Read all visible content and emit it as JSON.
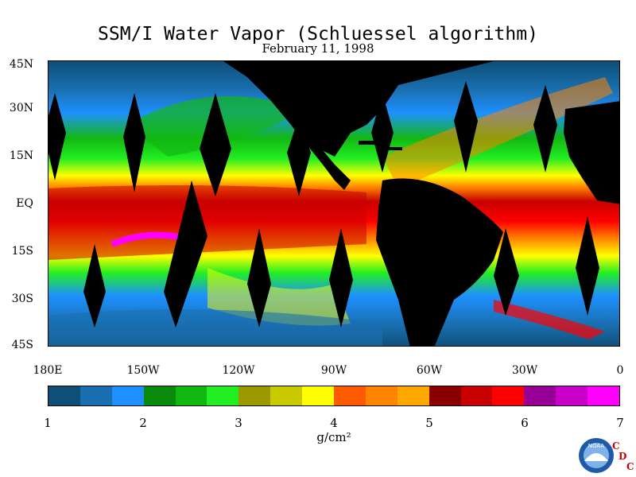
{
  "title": "SSM/I Water Vapor (Schluessel algorithm)",
  "date": "February 11, 1998",
  "lat_labels": [
    "45N",
    "30N",
    "15N",
    "EQ",
    "15S",
    "30S",
    "45S"
  ],
  "lon_labels": [
    "180E",
    "150W",
    "120W",
    "90W",
    "60W",
    "30W",
    "0"
  ],
  "colorbar": {
    "ticks": [
      "1",
      "2",
      "3",
      "4",
      "5",
      "6",
      "7"
    ],
    "units": "g/cm²",
    "colors": [
      "#0e4f78",
      "#1a6fb0",
      "#1e90ff",
      "#0a8a0a",
      "#12b812",
      "#22ee22",
      "#9a9a00",
      "#caca00",
      "#ffff00",
      "#ff5a00",
      "#ff8400",
      "#ffa800",
      "#8a0000",
      "#c80000",
      "#ff0000",
      "#960096",
      "#c800c8",
      "#ff00ff"
    ]
  },
  "logo": {
    "text": "NOAA",
    "icon": "noaa-logo-icon",
    "badge_letters": [
      "C",
      "D",
      "C"
    ]
  }
}
